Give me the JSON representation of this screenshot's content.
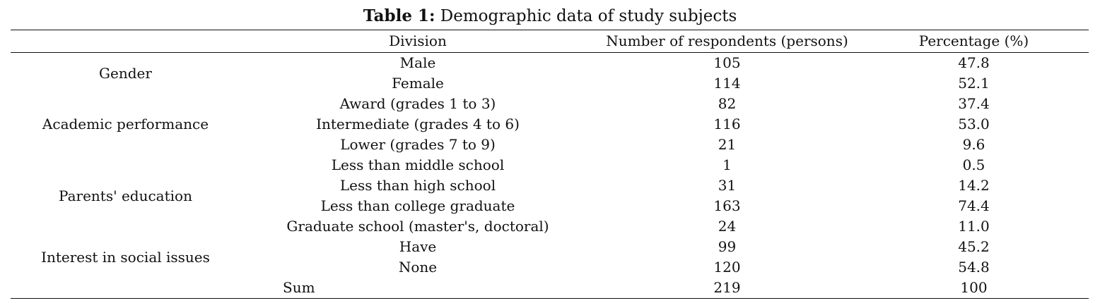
{
  "caption": {
    "label": "Table 1:",
    "text": "Demographic data of study subjects"
  },
  "table": {
    "headers": [
      "",
      "Division",
      "Number of respondents (persons)",
      "Percentage (%)"
    ],
    "groups": [
      {
        "name": "Gender",
        "rows": [
          {
            "division": "Male",
            "count": "105",
            "percent": "47.8"
          },
          {
            "division": "Female",
            "count": "114",
            "percent": "52.1"
          }
        ]
      },
      {
        "name": "Academic performance",
        "rows": [
          {
            "division": "Award (grades 1 to 3)",
            "count": "82",
            "percent": "37.4"
          },
          {
            "division": "Intermediate (grades 4 to 6)",
            "count": "116",
            "percent": "53.0"
          },
          {
            "division": "Lower (grades 7 to 9)",
            "count": "21",
            "percent": "9.6"
          }
        ]
      },
      {
        "name": "Parents' education",
        "rows": [
          {
            "division": "Less than middle school",
            "count": "1",
            "percent": "0.5"
          },
          {
            "division": "Less than high school",
            "count": "31",
            "percent": "14.2"
          },
          {
            "division": "Less than college graduate",
            "count": "163",
            "percent": "74.4"
          },
          {
            "division": "Graduate school (master's, doctoral)",
            "count": "24",
            "percent": "11.0"
          }
        ]
      },
      {
        "name": "Interest in social issues",
        "rows": [
          {
            "division": "Have",
            "count": "99",
            "percent": "45.2"
          },
          {
            "division": "None",
            "count": "120",
            "percent": "54.8"
          }
        ]
      }
    ],
    "sum": {
      "label": "Sum",
      "count": "219",
      "percent": "100"
    }
  }
}
